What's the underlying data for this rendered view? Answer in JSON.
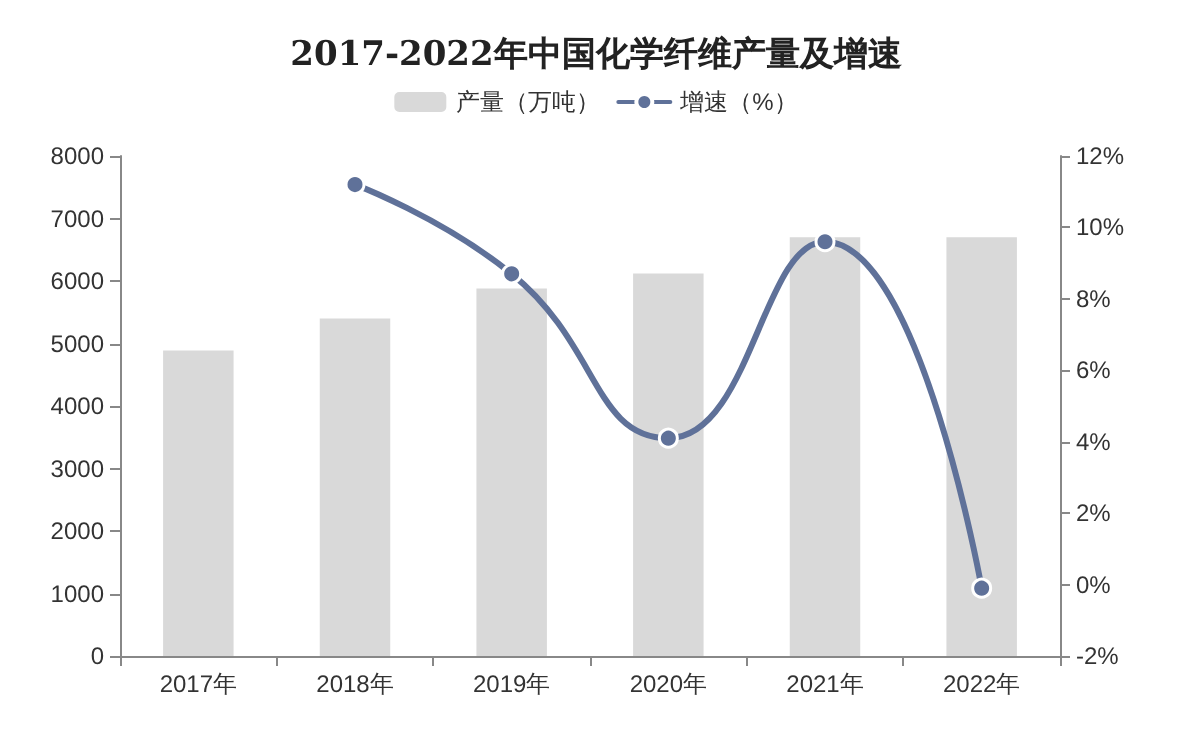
{
  "chart_data": {
    "type": "bar",
    "title": "2017-2022年中国化学纤维产量及增速",
    "categories": [
      "2017年",
      "2018年",
      "2019年",
      "2020年",
      "2021年",
      "2022年"
    ],
    "series": [
      {
        "name": "产量（万吨）",
        "color": "#d9d9d9",
        "values": [
          4890,
          5400,
          5880,
          6120,
          6700,
          6700
        ]
      },
      {
        "name": "增速（%）",
        "type": "line",
        "axis": "y2",
        "color": "#5f7199",
        "values": [
          null,
          11.2,
          8.7,
          4.1,
          9.6,
          -0.1
        ]
      }
    ],
    "ylim": [
      0,
      8000
    ],
    "yticks": [
      0,
      1000,
      2000,
      3000,
      4000,
      5000,
      6000,
      7000,
      8000
    ],
    "y2lim": [
      -2,
      12
    ],
    "y2ticks": [
      {
        "value": -2,
        "label": "-2%"
      },
      {
        "value": 0,
        "label": "0%"
      },
      {
        "value": 2,
        "label": "2%"
      },
      {
        "value": 4,
        "label": "4%"
      },
      {
        "value": 6,
        "label": "6%"
      },
      {
        "value": 8,
        "label": "8%"
      },
      {
        "value": 10,
        "label": "10%"
      },
      {
        "value": 12,
        "label": "12%"
      }
    ],
    "grid": false,
    "legend": "top",
    "marker": "circle",
    "line_style": "solid"
  }
}
